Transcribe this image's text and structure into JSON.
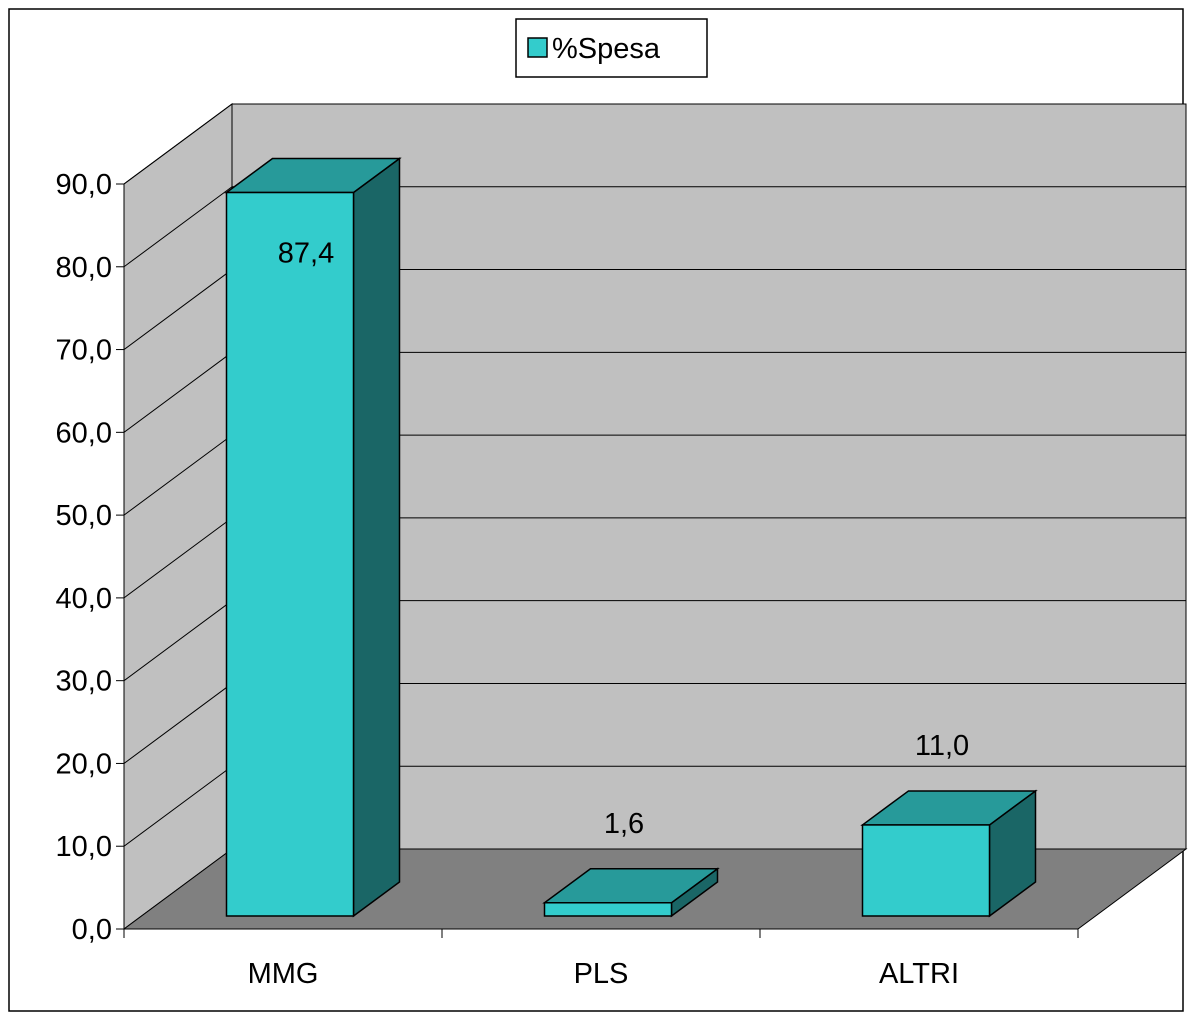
{
  "chart_data": {
    "type": "bar",
    "style": "3d-column",
    "categories": [
      "MMG",
      "PLS",
      "ALTRI"
    ],
    "series": [
      {
        "name": "%Spesa",
        "values": [
          87.4,
          1.6,
          11.0
        ]
      }
    ],
    "data_labels": [
      "87,4",
      "1,6",
      "11,0"
    ],
    "y_ticks": [
      "0,0",
      "10,0",
      "20,0",
      "30,0",
      "40,0",
      "50,0",
      "60,0",
      "70,0",
      "80,0",
      "90,0"
    ],
    "ylim": [
      0,
      90
    ],
    "grid": true,
    "legend": "top-center"
  },
  "colors": {
    "bar_front": "#33CCCC",
    "bar_top": "#279A9A",
    "bar_side": "#1A6666",
    "back_wall": "#C0C0C0",
    "side_wall": "#C0C0C0",
    "floor": "#808080",
    "gridline": "#000000"
  }
}
